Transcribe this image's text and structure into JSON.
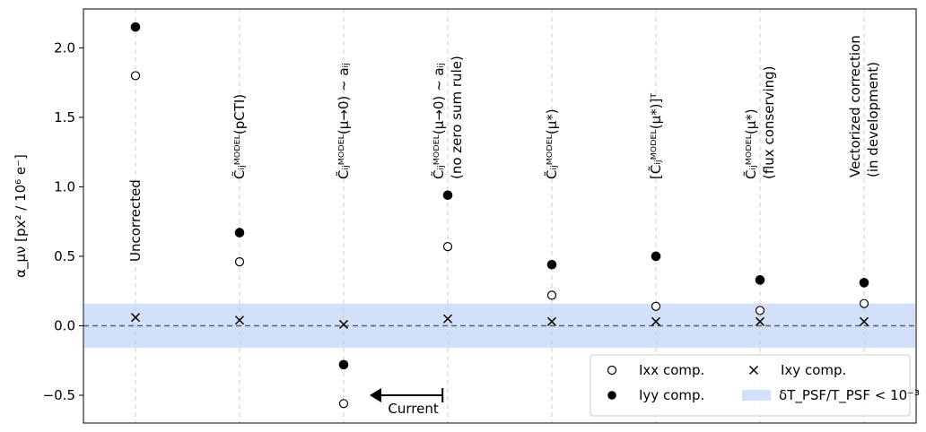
{
  "chart_data": {
    "type": "scatter",
    "ylabel": "α_μν [px² / 10⁶ e⁻]",
    "ylim": [
      -0.7,
      2.28
    ],
    "xlim": [
      -0.5,
      7.5
    ],
    "yticks": [
      -0.5,
      0.0,
      0.5,
      1.0,
      1.5,
      2.0
    ],
    "ytick_labels": [
      "−0.5",
      "0.0",
      "0.5",
      "1.0",
      "1.5",
      "2.0"
    ],
    "categories": [
      {
        "lines": [
          "Uncorrected"
        ]
      },
      {
        "lines": [
          "C̃ᵢⱼᴹᴼᴰᴱᴸ(pCTI)"
        ]
      },
      {
        "lines": [
          "C̃ᵢⱼᴹᴼᴰᴱᴸ(μ→0) ~ aᵢⱼ"
        ]
      },
      {
        "lines": [
          "C̃ᵢⱼᴹᴼᴰᴱᴸ(μ→0) ~ aᵢⱼ",
          "(no zero sum rule)"
        ]
      },
      {
        "lines": [
          "C̃ᵢⱼᴹᴼᴰᴱᴸ(μ*)"
        ]
      },
      {
        "lines": [
          "[C̃ᵢⱼᴹᴼᴰᴱᴸ(μ*)]ᵀ"
        ]
      },
      {
        "lines": [
          "C̃ᵢⱼᴹᴼᴰᴱᴸ(μ*)",
          "(flux conserving)"
        ]
      },
      {
        "lines": [
          "Vectorized correction",
          "(in development)"
        ]
      }
    ],
    "series": [
      {
        "name": "Ixx comp.",
        "marker": "open-circle",
        "values": [
          1.8,
          0.46,
          -0.56,
          0.57,
          0.22,
          0.14,
          0.11,
          0.16
        ]
      },
      {
        "name": "Iyy comp.",
        "marker": "filled-circle",
        "values": [
          2.15,
          0.67,
          -0.28,
          0.94,
          0.44,
          0.5,
          0.33,
          0.31
        ]
      },
      {
        "name": "Ixy comp.",
        "marker": "x",
        "values": [
          0.06,
          0.04,
          0.01,
          0.05,
          0.03,
          0.03,
          0.03,
          0.03
        ]
      }
    ],
    "band": {
      "name": "δT_PSF/T_PSF < 10⁻³",
      "ymin": -0.16,
      "ymax": 0.16,
      "color": "#d3e0fa"
    },
    "hline": {
      "y": 0.0,
      "style": "dashed",
      "color": "#5a6478"
    },
    "annotation": {
      "text": "Current",
      "x_from": 2.95,
      "x_to": 2.25,
      "y": -0.5
    },
    "legend": {
      "placement": "lower-right",
      "ncol": 2
    },
    "grid": "vertical dashed at categories"
  }
}
